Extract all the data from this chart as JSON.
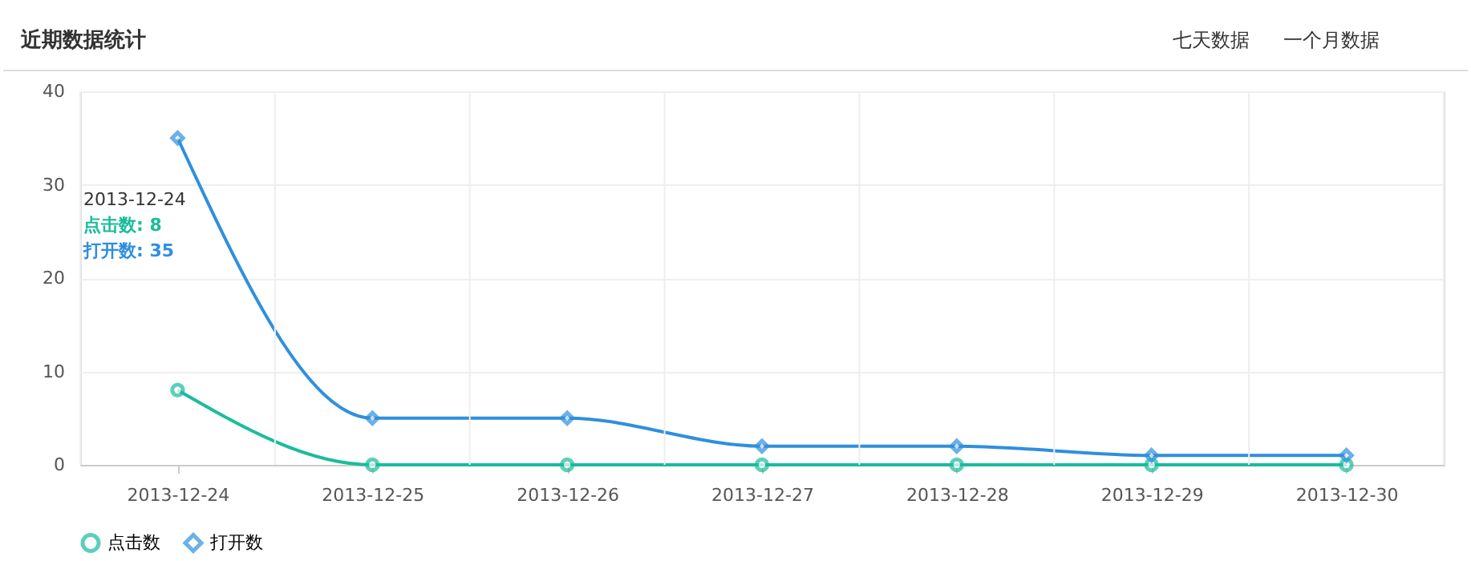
{
  "chart_data": {
    "type": "line",
    "title": "近期数据统计",
    "categories": [
      "2013-12-24",
      "2013-12-25",
      "2013-12-26",
      "2013-12-27",
      "2013-12-28",
      "2013-12-29",
      "2013-12-30"
    ],
    "series": [
      {
        "name": "点击数",
        "color": "#1abc9c",
        "values": [
          8,
          0,
          0,
          0,
          0,
          0,
          0
        ],
        "marker": "circle"
      },
      {
        "name": "打开数",
        "color": "#2f8fdd",
        "values": [
          35,
          5,
          5,
          2,
          2,
          1,
          1
        ],
        "marker": "diamond"
      }
    ],
    "ylim": [
      0,
      40
    ],
    "yticks": [
      0,
      10,
      20,
      30,
      40
    ],
    "grid": true,
    "legend": "bottom",
    "annotations": [
      "七天数据",
      "一个月数据",
      "2013-12-24",
      "点击数: 8",
      "打开数: 35"
    ]
  }
}
